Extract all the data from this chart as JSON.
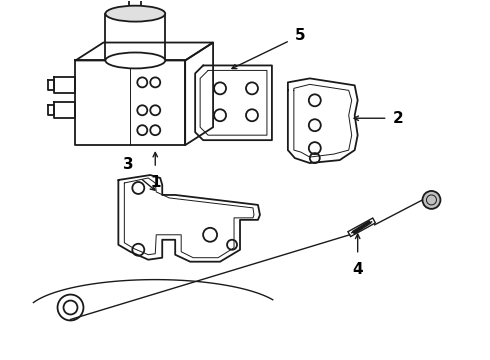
{
  "bg_color": "#ffffff",
  "line_color": "#1a1a1a",
  "label_color": "#000000",
  "lw": 1.3,
  "lw_thin": 0.7,
  "label_fontsize": 11,
  "figw": 4.9,
  "figh": 3.6,
  "dpi": 100
}
